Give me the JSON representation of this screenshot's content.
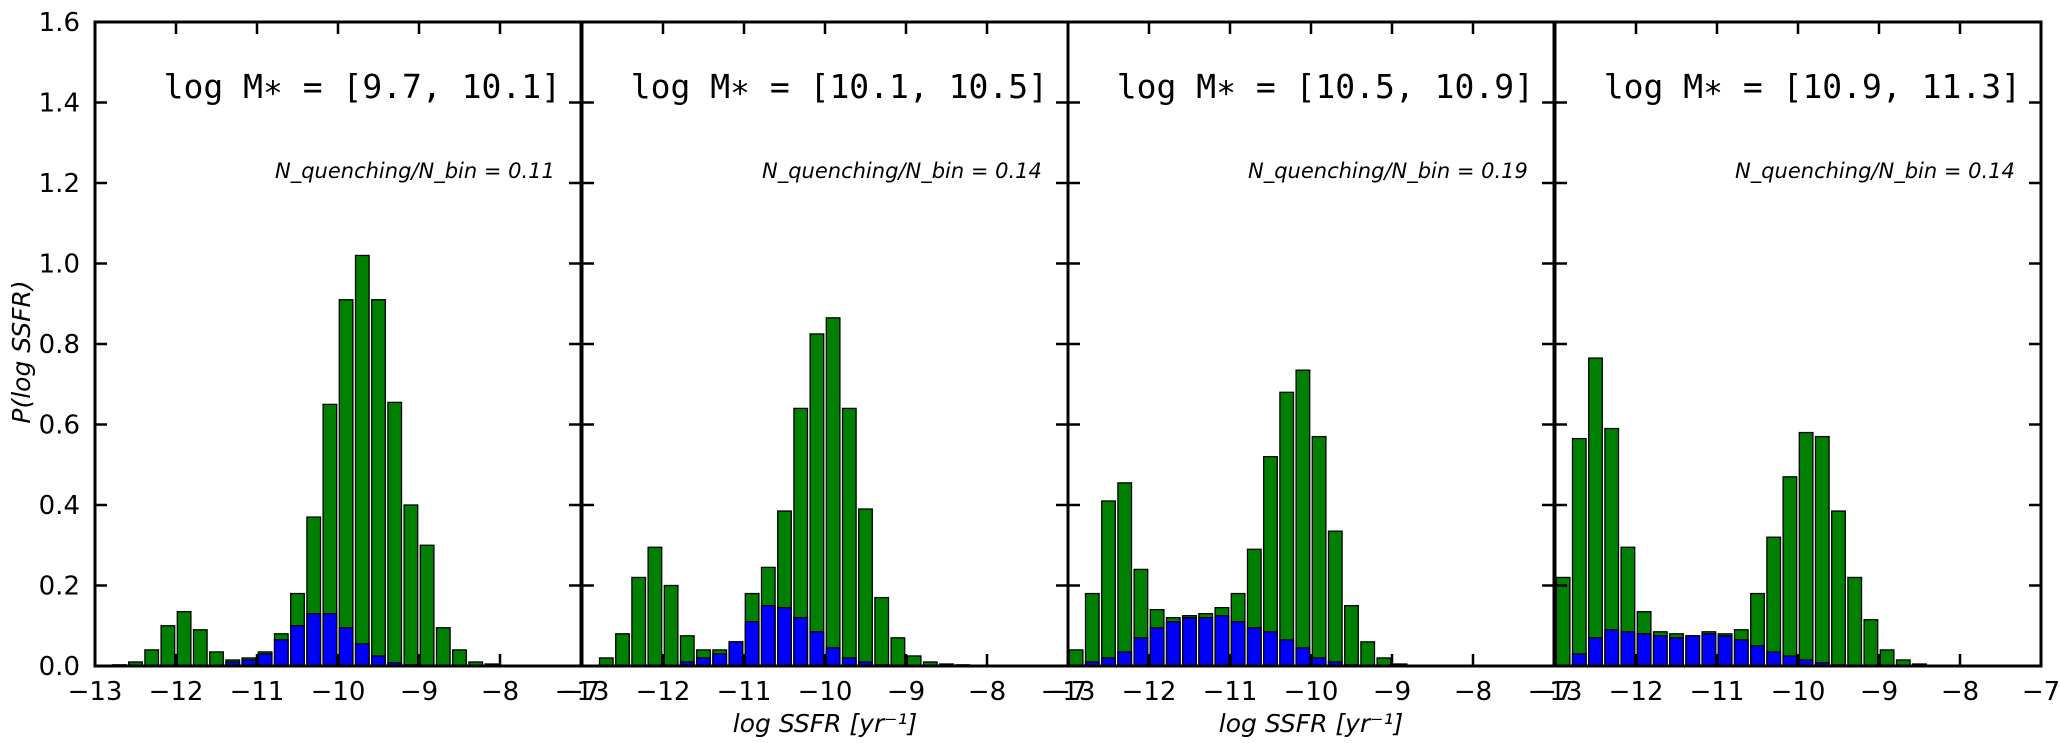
{
  "chart_data": {
    "type": "bar",
    "ylabel": "P(log SSFR)",
    "ylim": [
      0,
      1.6
    ],
    "yticks": [
      "0.0",
      "0.2",
      "0.4",
      "0.6",
      "0.8",
      "1.0",
      "1.2",
      "1.4",
      "1.6"
    ],
    "xticks": [
      "−13",
      "−12",
      "−11",
      "−10",
      "−9",
      "−8",
      "−7"
    ],
    "colors": {
      "all": "#008000",
      "quenching": "#0000ff"
    },
    "bin_start": -13.0,
    "bin_width": 0.2,
    "panels": [
      {
        "title": "log M∗ = [9.7, 10.1]",
        "annotation": "N_quenching/N_bin = 0.11",
        "xlabel": "",
        "xlim": [
          -13,
          -7
        ],
        "green": [
          0,
          0.003,
          0.01,
          0.04,
          0.1,
          0.135,
          0.09,
          0.035,
          0.015,
          0.02,
          0.035,
          0.08,
          0.18,
          0.37,
          0.65,
          0.91,
          1.02,
          0.91,
          0.655,
          0.4,
          0.3,
          0.095,
          0.04,
          0.01,
          0.005,
          0,
          0,
          0,
          0,
          0
        ],
        "blue": [
          0,
          0,
          0,
          0,
          0,
          0,
          0,
          0,
          0.01,
          0.015,
          0.03,
          0.065,
          0.1,
          0.13,
          0.13,
          0.095,
          0.055,
          0.025,
          0.008,
          0.003,
          0,
          0,
          0,
          0,
          0,
          0,
          0,
          0,
          0,
          0
        ]
      },
      {
        "title": "log M∗ = [10.1, 10.5]",
        "annotation": "N_quenching/N_bin = 0.14",
        "xlabel": "log SSFR [yr⁻¹]",
        "xlim": [
          -13,
          -7
        ],
        "green": [
          0,
          0.02,
          0.08,
          0.22,
          0.295,
          0.2,
          0.075,
          0.04,
          0.04,
          0.06,
          0.18,
          0.245,
          0.385,
          0.64,
          0.825,
          0.865,
          0.64,
          0.39,
          0.17,
          0.07,
          0.025,
          0.01,
          0.005,
          0.003,
          0,
          0,
          0,
          0,
          0,
          0
        ],
        "blue": [
          0,
          0,
          0,
          0,
          0,
          0,
          0.01,
          0.02,
          0.03,
          0.06,
          0.11,
          0.15,
          0.145,
          0.12,
          0.085,
          0.045,
          0.02,
          0.01,
          0.003,
          0,
          0,
          0,
          0,
          0,
          0,
          0,
          0,
          0,
          0,
          0
        ]
      },
      {
        "title": "log M∗ = [10.5, 10.9]",
        "annotation": "N_quenching/N_bin = 0.19",
        "xlabel": "log SSFR [yr⁻¹]",
        "xlim": [
          -13,
          -7
        ],
        "green": [
          0.04,
          0.18,
          0.41,
          0.455,
          0.24,
          0.14,
          0.12,
          0.125,
          0.13,
          0.145,
          0.18,
          0.29,
          0.52,
          0.68,
          0.735,
          0.57,
          0.335,
          0.15,
          0.06,
          0.02,
          0.005,
          0.002,
          0,
          0,
          0,
          0,
          0,
          0,
          0,
          0
        ],
        "blue": [
          0,
          0.01,
          0.02,
          0.035,
          0.07,
          0.095,
          0.11,
          0.12,
          0.12,
          0.125,
          0.11,
          0.095,
          0.085,
          0.065,
          0.045,
          0.02,
          0.01,
          0.003,
          0,
          0,
          0,
          0,
          0,
          0,
          0,
          0,
          0,
          0,
          0,
          0
        ]
      },
      {
        "title": "log M∗ = [10.9, 11.3]",
        "annotation": "N_quenching/N_bin = 0.14",
        "xlabel": "",
        "xlim": [
          -13,
          -7
        ],
        "green": [
          0.22,
          0.565,
          0.765,
          0.59,
          0.295,
          0.135,
          0.085,
          0.08,
          0.075,
          0.085,
          0.08,
          0.09,
          0.18,
          0.32,
          0.47,
          0.58,
          0.57,
          0.385,
          0.22,
          0.115,
          0.04,
          0.015,
          0.005,
          0.002,
          0,
          0,
          0,
          0,
          0,
          0
        ],
        "blue": [
          0,
          0.03,
          0.07,
          0.09,
          0.085,
          0.08,
          0.075,
          0.07,
          0.075,
          0.08,
          0.075,
          0.065,
          0.05,
          0.035,
          0.025,
          0.015,
          0.008,
          0.003,
          0,
          0,
          0,
          0,
          0,
          0,
          0,
          0,
          0,
          0,
          0,
          0
        ]
      }
    ]
  }
}
